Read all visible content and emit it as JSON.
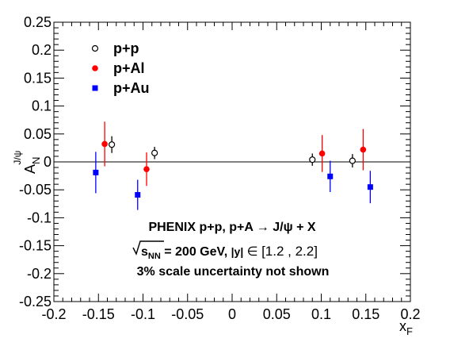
{
  "chart_data": {
    "type": "scatter",
    "xlabel": "x",
    "xlabel_sub": "F",
    "ylabel": "A",
    "ylabel_sub": "N",
    "ylabel_sup": "J/ψ",
    "xlim": [
      -0.2,
      0.2
    ],
    "ylim": [
      -0.25,
      0.25
    ],
    "xticks": [
      {
        "value": -0.2,
        "label": "-0.2"
      },
      {
        "value": -0.15,
        "label": "-0.15"
      },
      {
        "value": -0.1,
        "label": "-0.1"
      },
      {
        "value": -0.05,
        "label": "-0.05"
      },
      {
        "value": 0,
        "label": "0"
      },
      {
        "value": 0.05,
        "label": "0.05"
      },
      {
        "value": 0.1,
        "label": "0.1"
      },
      {
        "value": 0.15,
        "label": "0.15"
      },
      {
        "value": 0.2,
        "label": "0.2"
      }
    ],
    "yticks": [
      {
        "value": 0.25,
        "label": "0.25"
      },
      {
        "value": 0.2,
        "label": "0.2"
      },
      {
        "value": 0.15,
        "label": "0.15"
      },
      {
        "value": 0.1,
        "label": "0.1"
      },
      {
        "value": 0.05,
        "label": "0.05"
      },
      {
        "value": 0,
        "label": "0"
      },
      {
        "value": -0.05,
        "label": "-0.05"
      },
      {
        "value": -0.1,
        "label": "-0.1"
      },
      {
        "value": -0.15,
        "label": "-0.15"
      },
      {
        "value": -0.2,
        "label": "-0.2"
      },
      {
        "value": -0.25,
        "label": "-0.25"
      }
    ],
    "legend_position": "top-left",
    "series": [
      {
        "name": "p+p",
        "marker": "open-circle",
        "color": "#000000",
        "points": [
          {
            "x": -0.135,
            "y": 0.031,
            "err": 0.015
          },
          {
            "x": -0.087,
            "y": 0.016,
            "err": 0.011
          },
          {
            "x": 0.09,
            "y": 0.004,
            "err": 0.011
          },
          {
            "x": 0.135,
            "y": 0.002,
            "err": 0.012
          }
        ]
      },
      {
        "name": "p+Al",
        "marker": "filled-circle",
        "color": "#ff0000",
        "points": [
          {
            "x": -0.143,
            "y": 0.032,
            "err": 0.04
          },
          {
            "x": -0.096,
            "y": -0.013,
            "err": 0.03
          },
          {
            "x": 0.101,
            "y": 0.015,
            "err": 0.033
          },
          {
            "x": 0.147,
            "y": 0.022,
            "err": 0.037
          }
        ]
      },
      {
        "name": "p+Au",
        "marker": "filled-square",
        "color": "#0000ff",
        "points": [
          {
            "x": -0.153,
            "y": -0.019,
            "err": 0.037
          },
          {
            "x": -0.106,
            "y": -0.059,
            "err": 0.027
          },
          {
            "x": 0.11,
            "y": -0.026,
            "err": 0.028
          },
          {
            "x": 0.155,
            "y": -0.045,
            "err": 0.029
          }
        ]
      }
    ],
    "annotations": {
      "line1": "PHENIX p+p, p+A → J/ψ + X",
      "line2_sqrt": "s",
      "line2_sqrt_sub": "NN",
      "line2_rest": " = 200 GeV, ",
      "line2_y": "|y|",
      "line2_in": " ∈ ",
      "line2_range": "[1.2 , 2.2]",
      "line3": "3% scale uncertainty not shown"
    }
  }
}
